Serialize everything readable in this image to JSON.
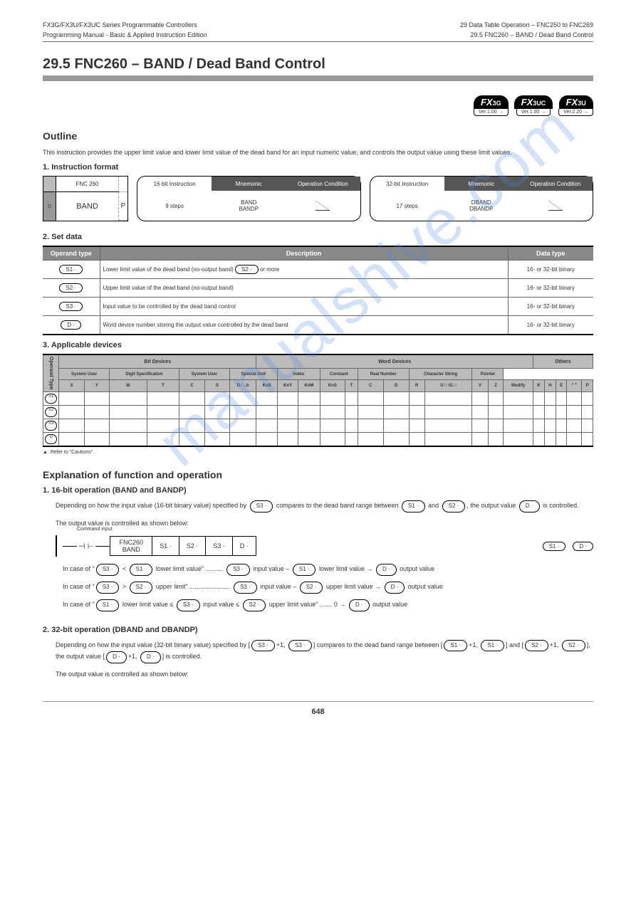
{
  "header": {
    "left1": "FX3G/FX3U/FX3UC Series Programmable Controllers",
    "left2": "Programming Manual - Basic & Applied Instruction Edition",
    "right1": "29 Data Table Operation – FNC250 to FNC269",
    "right2": "29.5 FNC260 – BAND / Dead Band Control"
  },
  "title": "29.5   FNC260 – BAND / Dead Band Control",
  "badges": [
    {
      "model": "FX3G",
      "ver": "Ver.1.00"
    },
    {
      "model": "FX3UC",
      "ver": "Ver.1.00"
    },
    {
      "model": "FX3U",
      "ver": "Ver.2.20"
    }
  ],
  "outline": {
    "heading": "Outline",
    "intro": "This instruction provides the upper limit value and lower limit value of the dead band for an input numeric value, and controls the output value using these limit values.",
    "formatHeading": "1. Instruction format",
    "fnc": "FNC 260",
    "name": "BAND",
    "symP": "P",
    "instr16": {
      "title": "16-bit Instruction",
      "mnemonic": "Mnemonic",
      "cond": "Operation Condition",
      "steps": "9 steps",
      "m1": "BAND",
      "c1": "Continuous\nOperation",
      "m2": "BANDP",
      "c2": "Pulse (Single)\nOperation"
    },
    "instr32": {
      "title": "32-bit Instruction",
      "mnemonic": "Mnemonic",
      "cond": "Operation Condition",
      "steps": "17 steps",
      "m1": "DBAND",
      "c1": "Continuous\nOperation",
      "m2": "DBANDP",
      "c2": "Pulse (Single)\nOperation"
    }
  },
  "table1": {
    "heading": "2. Set data",
    "cols": [
      "Operand type",
      "Description",
      "Data type"
    ],
    "rows": [
      {
        "op": "S1 ·",
        "desc_pre": "Lower limit value of the dead band (no-output band)",
        "desc_pill": "S2 ·",
        "desc_post": "  or more",
        "dtype": "16- or 32-bit binary"
      },
      {
        "op": "S2 ·",
        "desc_pre": "Upper limit value of the dead band (no-output band)",
        "desc_pill": "",
        "desc_post": "",
        "dtype": "16- or 32-bit binary"
      },
      {
        "op": "S3 ·",
        "desc_pre": "Input value to be controlled by the dead band control",
        "desc_pill": "",
        "desc_post": "",
        "dtype": "16- or 32-bit binary"
      },
      {
        "op": "D ·",
        "desc_pre": "Word device number storing the output value controlled by the dead band",
        "desc_pill": "",
        "desc_post": "",
        "dtype": "16- or 32-bit binary"
      }
    ]
  },
  "table2": {
    "heading": "3. Applicable devices",
    "groups": [
      "Bit Devices",
      "Word Devices",
      "Others"
    ],
    "sub1": [
      "System User",
      "Digit Specification",
      "System User",
      "Special Unit",
      "Index",
      "Constant",
      "Real Number",
      "Character String",
      "Pointer"
    ],
    "cols": [
      "X",
      "Y",
      "M",
      "T",
      "C",
      "S",
      "D □ .b",
      "KnX",
      "KnY",
      "KnM",
      "KnS",
      "T",
      "C",
      "D",
      "R",
      "U □ \\G □",
      "V",
      "Z",
      "Modify",
      "K",
      "H",
      "E",
      "\" \"",
      "P"
    ],
    "ops": [
      "S1 ·",
      "S2 ·",
      "S3 ·",
      "D ·"
    ],
    "footnote": "▲: Refer to \"Cautions\"."
  },
  "func": {
    "heading": "Explanation of function and operation",
    "sub1": "1. 16-bit operation (BAND and BANDP)",
    "para1a": "Depending on how the input value (16-bit binary value) specified by ",
    "para1b": " compares to the dead band range between ",
    "para1c": " and ",
    "para1d": ", the output value ",
    "para1e": " is controlled.",
    "s1": "S1 ·",
    "s2": "S2 ·",
    "s3": "S3 ·",
    "d": "D ·",
    "para2": "The output value is controlled as shown below:",
    "cmd": "Command input",
    "fnc": "FNC260",
    "name": "BAND",
    "line1a": "In case of \"",
    "line1b": " < ",
    "line1c": " lower limit value\" .......... ",
    "line1d": " input value – ",
    "line1e": " lower limit value → ",
    "line1f": " output value",
    "line2a": "In case of \"",
    "line2b": " > ",
    "line2c": " upper limit\" ....................... ",
    "line2d": " input value – ",
    "line2e": " upper limit value → ",
    "line2f": " output value",
    "line3a": "In case of \"",
    "line3b": " lower limit value ≤ ",
    "line3c": " input value ≤ ",
    "line3d": " upper limit value\" ....... 0 → ",
    "line3e": " output value",
    "sub2": "2. 32-bit operation (DBAND and DBANDP)",
    "para3a": "Depending on how the input value (32-bit binary value) specified by [",
    "para3b": "+1, ",
    "para3c": "] compares to the dead band range between [",
    "para3d": "+1, ",
    "para3e": "] and [",
    "para3f": "+1, ",
    "para3g": "], the output value [",
    "para3h": "+1, ",
    "para3i": "] is controlled.",
    "para4": "The output value is controlled as shown below:"
  },
  "page": "648"
}
